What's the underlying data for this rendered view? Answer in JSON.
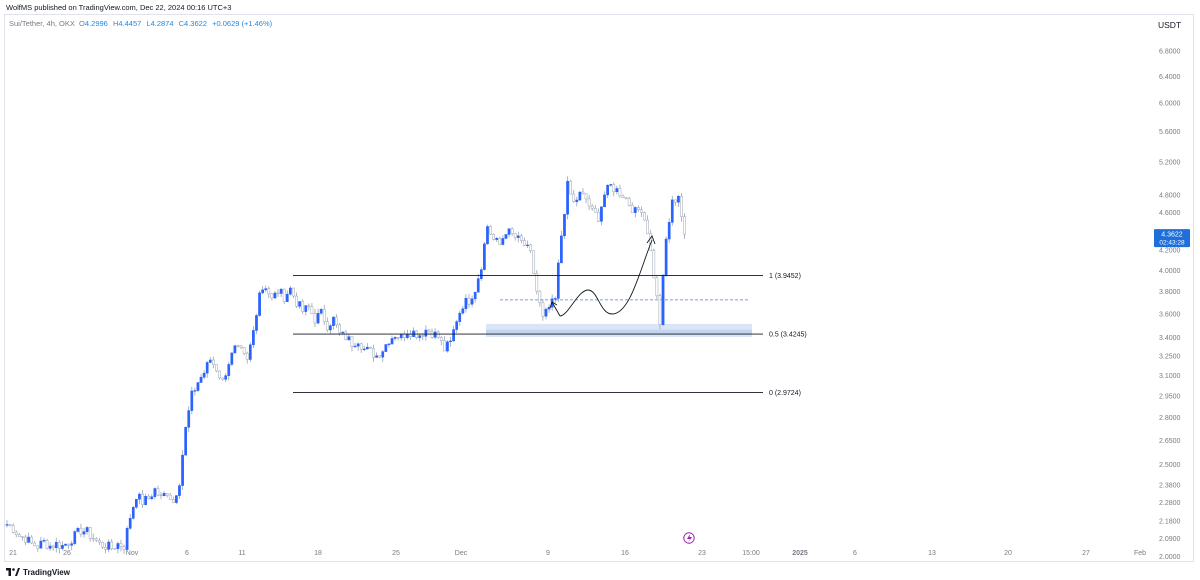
{
  "header": {
    "publisher": "WolfMS published on TradingView.com, Dec 22, 2024 00:16 UTC+3"
  },
  "symbol": {
    "name": "Sui/Tether, 4h, OKX",
    "open_label": "O",
    "open": "4.2996",
    "high_label": "H",
    "high": "4.4457",
    "low_label": "L",
    "low": "4.2874",
    "close_label": "C",
    "close": "4.3622",
    "change": "+0.0629 (+1.46%)"
  },
  "currency": "USDT",
  "footer": {
    "brand": "TradingView",
    "logo_icon": "tradingview-logo-icon"
  },
  "colors": {
    "candle": "#2962ff",
    "wick": "#9aa4b5",
    "zone": "#bbd0ee",
    "line": "#131722",
    "price_tag": "#1e6fd9",
    "accent": "#9c27b0"
  },
  "chart_data": {
    "type": "candlestick",
    "y_scale": "log",
    "ylim": [
      2.04,
      7.15
    ],
    "y_ticks": [
      "6.8000",
      "6.4000",
      "6.0000",
      "5.6000",
      "5.2000",
      "4.8000",
      "4.6000",
      "4.2000",
      "4.0000",
      "3.8000",
      "3.6000",
      "3.4000",
      "3.2500",
      "3.1000",
      "2.9500",
      "2.8000",
      "2.6500",
      "2.5000",
      "2.3800",
      "2.2800",
      "2.1800",
      "2.0900",
      "2.0000"
    ],
    "x_ticks": [
      "21",
      "26",
      "Nov",
      "6",
      "11",
      "18",
      "25",
      "Dec",
      "9",
      "16",
      "23",
      "15:00",
      "2025",
      "6",
      "13",
      "20",
      "27",
      "Feb"
    ],
    "last_price": {
      "price": "4.3622",
      "countdown": "02:43:28"
    },
    "fib_levels": [
      {
        "label": "1 (3.9452)",
        "value": 3.9452
      },
      {
        "label": "0.5 (3.4245)",
        "value": 3.4245
      },
      {
        "label": "0 (2.9724)",
        "value": 2.9724
      }
    ],
    "dashed_level": 3.72,
    "support_zone": [
      3.4,
      3.51
    ],
    "price_path": [
      [
        0,
        2.16
      ],
      [
        2,
        2.14
      ],
      [
        4,
        2.1
      ],
      [
        6,
        2.09
      ],
      [
        8,
        2.06
      ],
      [
        10,
        2.05
      ],
      [
        12,
        2.07
      ],
      [
        14,
        2.05
      ],
      [
        16,
        2.06
      ],
      [
        18,
        2.05
      ],
      [
        20,
        2.07
      ],
      [
        22,
        2.1
      ],
      [
        24,
        2.13
      ],
      [
        26,
        2.12
      ],
      [
        28,
        2.09
      ],
      [
        30,
        2.06
      ],
      [
        32,
        2.05
      ],
      [
        34,
        2.04
      ],
      [
        36,
        2.06
      ],
      [
        38,
        2.05
      ],
      [
        40,
        2.2
      ],
      [
        42,
        2.32
      ],
      [
        44,
        2.28
      ],
      [
        46,
        2.3
      ],
      [
        48,
        2.35
      ],
      [
        50,
        2.3
      ],
      [
        52,
        2.34
      ],
      [
        54,
        2.28
      ],
      [
        56,
        2.4
      ],
      [
        58,
        2.72
      ],
      [
        60,
        2.95
      ],
      [
        62,
        3.05
      ],
      [
        64,
        3.12
      ],
      [
        66,
        3.22
      ],
      [
        68,
        3.15
      ],
      [
        70,
        3.05
      ],
      [
        72,
        3.2
      ],
      [
        74,
        3.3
      ],
      [
        76,
        3.28
      ],
      [
        78,
        3.2
      ],
      [
        80,
        3.45
      ],
      [
        82,
        3.8
      ],
      [
        84,
        3.85
      ],
      [
        86,
        3.72
      ],
      [
        88,
        3.8
      ],
      [
        90,
        3.75
      ],
      [
        92,
        3.82
      ],
      [
        94,
        3.7
      ],
      [
        96,
        3.62
      ],
      [
        98,
        3.65
      ],
      [
        100,
        3.55
      ],
      [
        102,
        3.6
      ],
      [
        104,
        3.5
      ],
      [
        106,
        3.55
      ],
      [
        108,
        3.42
      ],
      [
        110,
        3.4
      ],
      [
        112,
        3.35
      ],
      [
        114,
        3.38
      ],
      [
        116,
        3.3
      ],
      [
        118,
        3.28
      ],
      [
        120,
        3.25
      ],
      [
        122,
        3.3
      ],
      [
        124,
        3.38
      ],
      [
        126,
        3.42
      ],
      [
        128,
        3.4
      ],
      [
        130,
        3.45
      ],
      [
        132,
        3.44
      ],
      [
        134,
        3.42
      ],
      [
        136,
        3.46
      ],
      [
        138,
        3.44
      ],
      [
        140,
        3.4
      ],
      [
        142,
        3.3
      ],
      [
        144,
        3.35
      ],
      [
        146,
        3.55
      ],
      [
        148,
        3.68
      ],
      [
        150,
        3.72
      ],
      [
        152,
        3.82
      ],
      [
        154,
        4.05
      ],
      [
        156,
        4.45
      ],
      [
        158,
        4.3
      ],
      [
        160,
        4.25
      ],
      [
        162,
        4.4
      ],
      [
        164,
        4.35
      ],
      [
        166,
        4.3
      ],
      [
        168,
        4.25
      ],
      [
        170,
        4.15
      ],
      [
        172,
        3.8
      ],
      [
        174,
        3.55
      ],
      [
        176,
        3.65
      ],
      [
        178,
        3.72
      ],
      [
        180,
        4.35
      ],
      [
        182,
        4.9
      ],
      [
        184,
        4.7
      ],
      [
        186,
        4.8
      ],
      [
        188,
        4.75
      ],
      [
        190,
        4.6
      ],
      [
        192,
        4.55
      ],
      [
        194,
        4.8
      ],
      [
        196,
        4.9
      ],
      [
        198,
        4.85
      ],
      [
        200,
        4.8
      ],
      [
        202,
        4.7
      ],
      [
        204,
        4.6
      ],
      [
        206,
        4.65
      ],
      [
        208,
        4.4
      ],
      [
        210,
        3.95
      ],
      [
        212,
        3.52
      ],
      [
        214,
        4.3
      ],
      [
        216,
        4.7
      ],
      [
        218,
        4.8
      ],
      [
        219,
        4.56
      ],
      [
        220,
        4.36
      ]
    ]
  }
}
